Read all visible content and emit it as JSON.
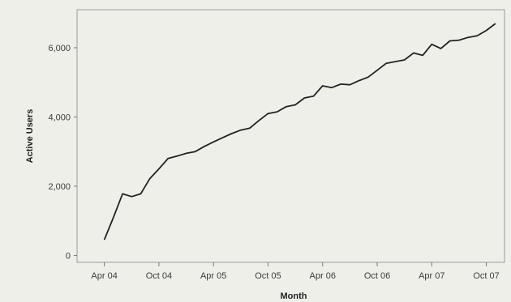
{
  "chart_data": {
    "type": "line",
    "title": "",
    "xlabel": "Month",
    "ylabel": "Active Users",
    "x_tick_labels": [
      "Apr 04",
      "Oct 04",
      "Apr 05",
      "Oct 05",
      "Apr 06",
      "Oct 06",
      "Apr 07",
      "Oct 07"
    ],
    "y_tick_labels": [
      "0",
      "2,000",
      "4,000",
      "6,000"
    ],
    "y_ticks": [
      0,
      2000,
      4000,
      6000
    ],
    "xlim": [
      "2004-01",
      "2007-12"
    ],
    "ylim": [
      -200,
      7100
    ],
    "grid": false,
    "line_color": "#222222",
    "series": [
      {
        "x": [
          "2004-04",
          "2004-05",
          "2004-06",
          "2004-07",
          "2004-08",
          "2004-09",
          "2004-10",
          "2004-11",
          "2004-12",
          "2005-01",
          "2005-02",
          "2005-03",
          "2005-04",
          "2005-05",
          "2005-06",
          "2005-07",
          "2005-08",
          "2005-09",
          "2005-10",
          "2005-11",
          "2005-12",
          "2006-01",
          "2006-02",
          "2006-03",
          "2006-04",
          "2006-05",
          "2006-06",
          "2006-07",
          "2006-08",
          "2006-09",
          "2006-10",
          "2006-11",
          "2006-12",
          "2007-01",
          "2007-02",
          "2007-03",
          "2007-04",
          "2007-05",
          "2007-06",
          "2007-07",
          "2007-08",
          "2007-09",
          "2007-10",
          "2007-11"
        ],
        "values": [
          450,
          1100,
          1780,
          1700,
          1780,
          2220,
          2500,
          2800,
          2870,
          2950,
          3000,
          3150,
          3280,
          3400,
          3520,
          3620,
          3680,
          3900,
          4100,
          4150,
          4300,
          4350,
          4550,
          4600,
          4900,
          4850,
          4950,
          4930,
          5050,
          5150,
          5350,
          5550,
          5600,
          5650,
          5850,
          5780,
          6100,
          5980,
          6200,
          6220,
          6300,
          6350,
          6500,
          6700
        ]
      }
    ]
  }
}
